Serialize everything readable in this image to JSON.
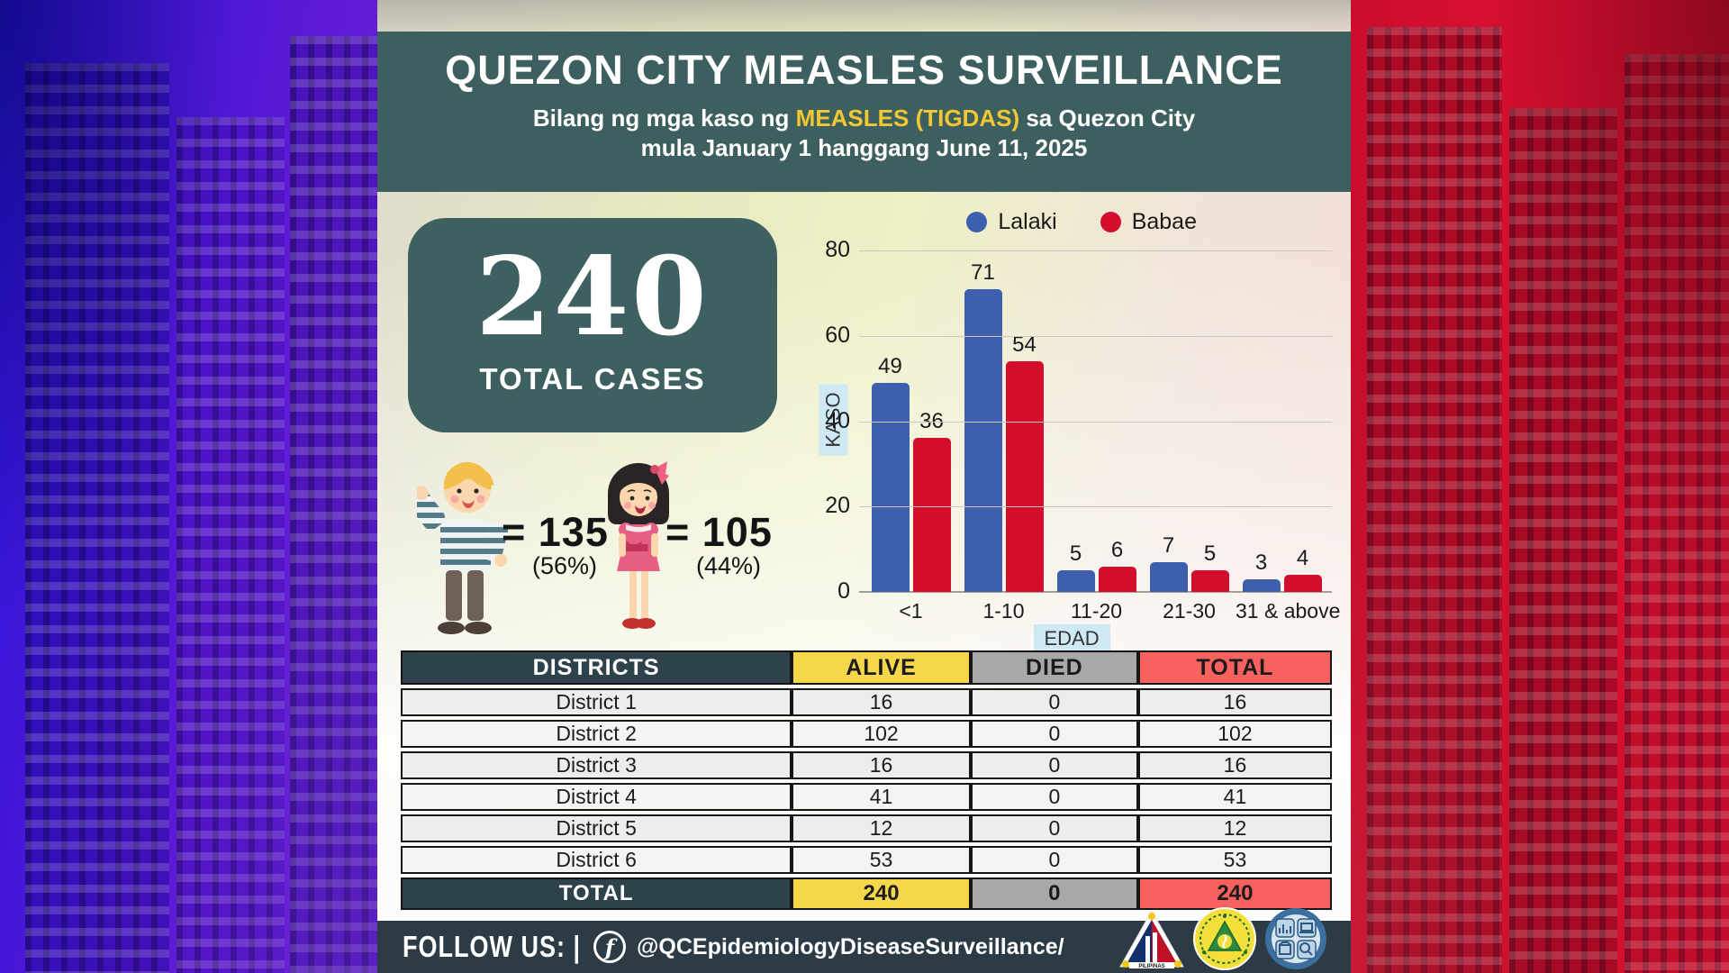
{
  "header": {
    "title": "QUEZON CITY MEASLES SURVEILLANCE",
    "subtitle_prefix": "Bilang ng mga kaso ng ",
    "subtitle_highlight": "MEASLES (TIGDAS)",
    "subtitle_suffix": " sa Quezon City",
    "subtitle_line2": "mula January 1 hanggang June 11, 2025"
  },
  "summary": {
    "total_value": "240",
    "total_label": "TOTAL CASES"
  },
  "gender": {
    "male": {
      "value": "= 135",
      "percent": "(56%)"
    },
    "female": {
      "value": "= 105",
      "percent": "(44%)"
    }
  },
  "chart_data": {
    "type": "bar",
    "categories": [
      "<1",
      "1-10",
      "11-20",
      "21-30",
      "31 & above"
    ],
    "series": [
      {
        "name": "Lalaki",
        "color": "#3d5fad",
        "values": [
          49,
          71,
          5,
          7,
          3
        ]
      },
      {
        "name": "Babae",
        "color": "#d30e2c",
        "values": [
          36,
          54,
          6,
          5,
          4
        ]
      }
    ],
    "title": "",
    "xlabel": "EDAD",
    "ylabel": "KASO",
    "ylim": [
      0,
      80
    ],
    "yticks": [
      0,
      20,
      40,
      60,
      80
    ],
    "grid": true,
    "legend_position": "top-right"
  },
  "table": {
    "headers": [
      "DISTRICTS",
      "ALIVE",
      "DIED",
      "TOTAL"
    ],
    "rows": [
      [
        "District 1",
        "16",
        "0",
        "16"
      ],
      [
        "District 2",
        "102",
        "0",
        "102"
      ],
      [
        "District 3",
        "16",
        "0",
        "16"
      ],
      [
        "District 4",
        "41",
        "0",
        "41"
      ],
      [
        "District 5",
        "12",
        "0",
        "12"
      ],
      [
        "District 6",
        "53",
        "0",
        "53"
      ]
    ],
    "total_row": [
      "TOTAL",
      "240",
      "0",
      "240"
    ]
  },
  "footer": {
    "follow_label": "FOLLOW US: |",
    "facebook_icon": "f",
    "facebook_handle": "@QCEpidemiologyDiseaseSurveillance/"
  },
  "logos": {
    "seal": "LUNGSOD QUEZON PILIPINAS",
    "health": "QUEZON CITY HEALTH DEPARTMENT",
    "epi": "QC EPIDEMIOLOGY AND SURVEILLANCE DIVISION - 2023"
  },
  "colors": {
    "header_band": "#3e5f60",
    "card": "#3e6061",
    "footer": "#2c3b45",
    "table_header_dark": "#2e424b",
    "alive_yellow": "#f6d74b",
    "died_gray": "#a8a8a8",
    "total_red": "#f9615e",
    "bar_blue": "#3d5fad",
    "bar_red": "#d30e2c",
    "subtitle_yellow": "#f2c832",
    "axis_chip_blue": "#cfe9f4",
    "bg_left_purple": "#5a19d6",
    "bg_right_red": "#d60f30"
  }
}
